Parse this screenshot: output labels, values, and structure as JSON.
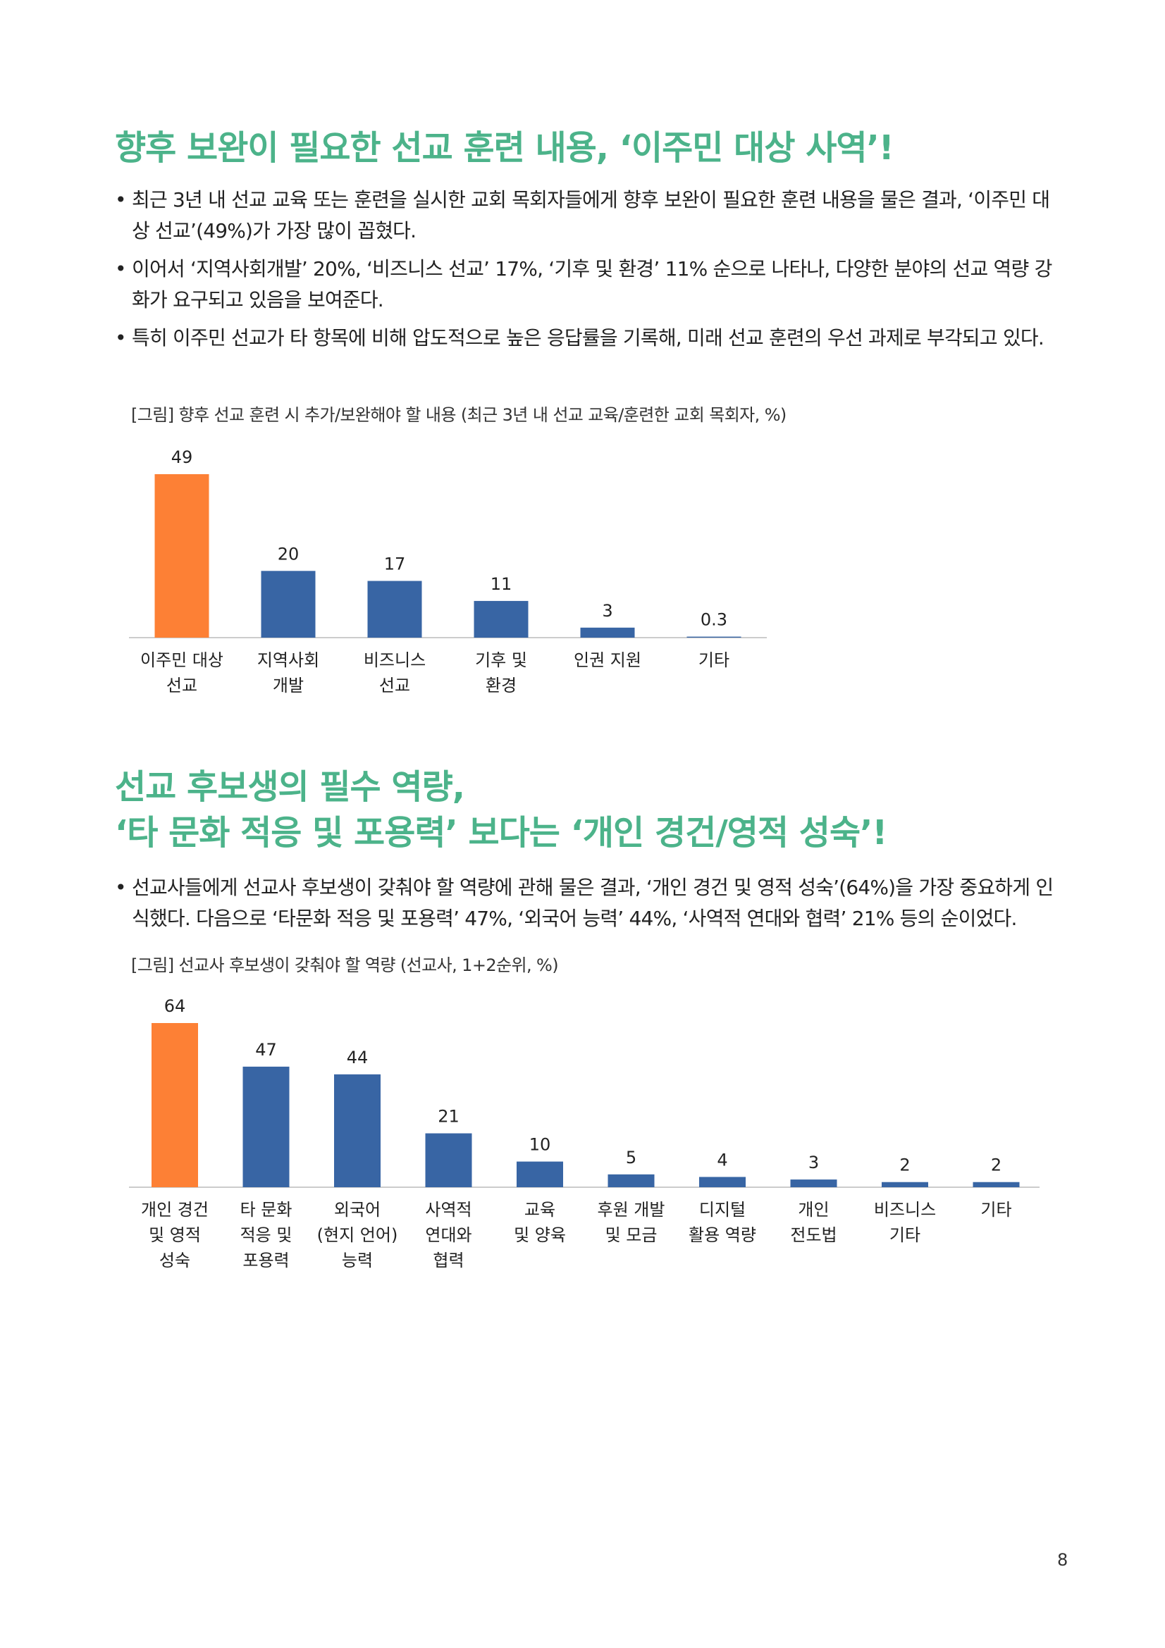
{
  "section1": {
    "heading": "향후 보완이 필요한 선교 훈련 내용, ‘이주민 대상 사역’!",
    "bullets": [
      "최근 3년 내 선교 교육 또는 훈련을 실시한 교회 목회자들에게 향후 보완이 필요한 훈련 내용을 물은 결과, ‘이주민 대상 선교’(49%)가 가장 많이 꼽혔다.",
      "이어서 ‘지역사회개발’ 20%, ‘비즈니스 선교’ 17%, ‘기후 및 환경’ 11% 순으로 나타나, 다양한 분야의 선교 역량 강화가 요구되고 있음을 보여준다.",
      "특히 이주민 선교가 타 항목에 비해 압도적으로 높은 응답률을 기록해, 미래 선교 훈련의 우선 과제로 부각되고 있다."
    ],
    "caption": "[그림] 향후 선교 훈련 시 추가/보완해야 할 내용 (최근 3년 내 선교 교육/훈련한 교회 목회자, %)"
  },
  "section2": {
    "heading_line1": "선교 후보생의 필수 역량,",
    "heading_line2": "‘타 문화 적응 및 포용력’ 보다는 ‘개인 경건/영적 성숙’!",
    "bullets": [
      "선교사들에게 선교사 후보생이 갖춰야 할 역량에 관해 물은 결과, ‘개인 경건 및 영적 성숙’(64%)을 가장 중요하게 인식했다. 다음으로 ‘타문화 적응 및 포용력’ 47%, ‘외국어 능력’ 44%, ‘사역적 연대와 협력’ 21% 등의 순이었다."
    ],
    "caption": "[그림] 선교사 후보생이 갖춰야 할 역량 (선교사, 1+2순위, %)"
  },
  "page_number": "8",
  "colors": {
    "highlight": "#fd8035",
    "bar": "#3865a4",
    "heading": "#4cb38a",
    "axis": "#cccccc"
  },
  "chart_data": [
    {
      "type": "bar",
      "title": "",
      "categories": [
        [
          "이주민 대상",
          "선교"
        ],
        [
          "지역사회",
          "개발"
        ],
        [
          "비즈니스",
          "선교"
        ],
        [
          "기후 및",
          "환경"
        ],
        [
          "인권 지원"
        ],
        [
          "기타"
        ]
      ],
      "values": [
        49,
        20,
        17,
        11,
        3,
        0.3
      ],
      "value_labels": [
        "49",
        "20",
        "17",
        "11",
        "3",
        "0.3"
      ],
      "highlight_index": 0,
      "ylim": [
        0,
        49
      ],
      "grid": false,
      "legend": "none"
    },
    {
      "type": "bar",
      "title": "",
      "categories": [
        [
          "개인 경건",
          "및 영적",
          "성숙"
        ],
        [
          "타 문화",
          "적응 및",
          "포용력"
        ],
        [
          "외국어",
          "(현지 언어)",
          "능력"
        ],
        [
          "사역적",
          "연대와",
          "협력"
        ],
        [
          "교육",
          "및 양육"
        ],
        [
          "후원 개발",
          "및 모금"
        ],
        [
          "디지털",
          "활용 역량"
        ],
        [
          "개인",
          "전도법"
        ],
        [
          "비즈니스",
          "기타"
        ],
        [
          "기타"
        ]
      ],
      "values": [
        64,
        47,
        44,
        21,
        10,
        5,
        4,
        3,
        2,
        2
      ],
      "value_labels": [
        "64",
        "47",
        "44",
        "21",
        "10",
        "5",
        "4",
        "3",
        "2",
        "2"
      ],
      "highlight_index": 0,
      "ylim": [
        0,
        64
      ],
      "grid": false,
      "legend": "none"
    }
  ]
}
